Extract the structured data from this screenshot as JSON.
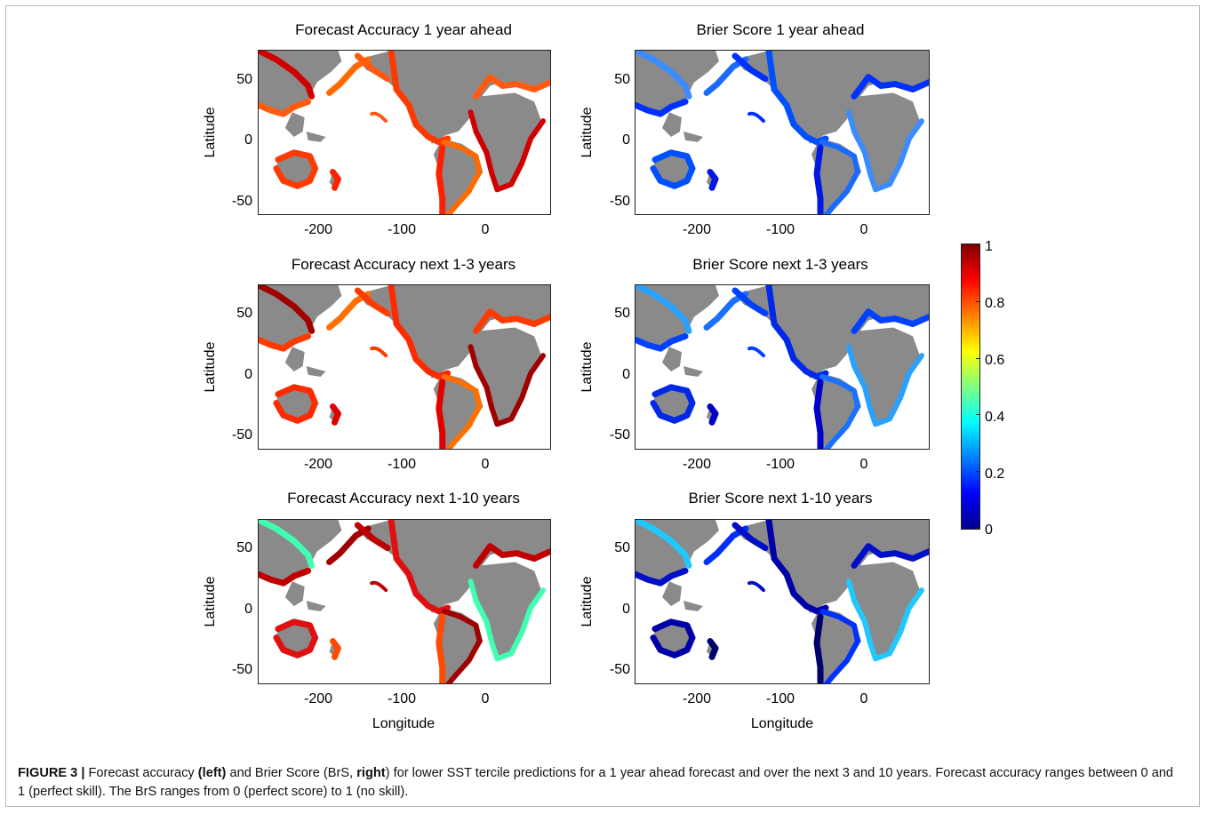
{
  "figure": {
    "panels": [
      {
        "id": "fa1",
        "title": "Forecast Accuracy 1 year ahead",
        "palette": [
          "#ff5a10",
          "#ff3a00",
          "#ff6a00",
          "#ff2000",
          "#d00000"
        ]
      },
      {
        "id": "bs1",
        "title": "Brier Score 1 year ahead",
        "palette": [
          "#0030ff",
          "#0050ff",
          "#1a6aff",
          "#0018e0",
          "#3a8cff"
        ]
      },
      {
        "id": "fa3",
        "title": "Forecast Accuracy next 1-3 years",
        "palette": [
          "#ff3a00",
          "#ff2a00",
          "#ff7000",
          "#e00000",
          "#a00000"
        ]
      },
      {
        "id": "bs3",
        "title": "Brier Score next 1-3 years",
        "palette": [
          "#0040ff",
          "#0028e8",
          "#1a70ff",
          "#0000c8",
          "#2aa0ff"
        ]
      },
      {
        "id": "fa10",
        "title": "Forecast Accuracy next 1-10 years",
        "palette": [
          "#c00000",
          "#e01010",
          "#a00000",
          "#ff4a00",
          "#40ffb0"
        ]
      },
      {
        "id": "bs10",
        "title": "Brier Score next 1-10 years",
        "palette": [
          "#0010c8",
          "#0000a8",
          "#0030ff",
          "#00006f",
          "#20c8ff"
        ]
      }
    ],
    "axes": {
      "ylabel": "Latitude",
      "xlabel": "Longitude",
      "xticks": [
        "-200",
        "-100",
        "0"
      ],
      "yticks": [
        "50",
        "0",
        "-50"
      ]
    },
    "colorbar": {
      "ticks": [
        "1",
        "0.8",
        "0.6",
        "0.4",
        "0.2",
        "0"
      ],
      "colors": [
        "#00008f",
        "#0000ff",
        "#0080ff",
        "#00ffff",
        "#80ff80",
        "#ffff00",
        "#ff8000",
        "#ff0000",
        "#800000"
      ]
    },
    "caption": {
      "label": "FIGURE 3 |",
      "t1": " Forecast accuracy ",
      "b1": "(left)",
      "t2": " and Brier Score (BrS, ",
      "b2": "right",
      "t3": ") for lower SST tercile predictions for a 1 year ahead forecast and over the next 3 and 10 years. Forecast accuracy ranges between 0 and 1 (perfect skill). The BrS ranges from 0 (perfect score) to 1 (no skill)."
    }
  }
}
